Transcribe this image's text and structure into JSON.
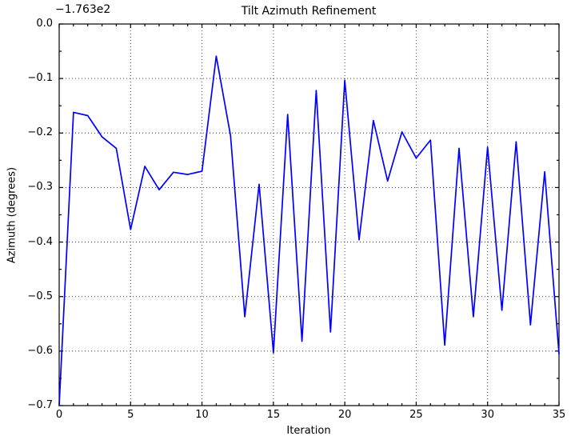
{
  "figure": {
    "background": "#ffffff",
    "spine_color": "#000000",
    "grid_color": "#444444",
    "text_color": "#000000"
  },
  "chart_data": {
    "type": "line",
    "title": "Tilt Azimuth Refinement",
    "xlabel": "Iteration",
    "ylabel": "Azimuth (degrees)",
    "y_offset_label": "−1.763e2",
    "xlim": [
      0,
      35
    ],
    "ylim": [
      -0.7,
      0.0
    ],
    "xticks": [
      0,
      5,
      10,
      15,
      20,
      25,
      30,
      35
    ],
    "xtick_labels": [
      "0",
      "5",
      "10",
      "15",
      "20",
      "25",
      "30",
      "35"
    ],
    "yticks": [
      0.0,
      -0.1,
      -0.2,
      -0.3,
      -0.4,
      -0.5,
      -0.6,
      -0.7
    ],
    "ytick_labels": [
      "0.0",
      "−0.1",
      "−0.2",
      "−0.3",
      "−0.4",
      "−0.5",
      "−0.6",
      "−0.7"
    ],
    "minor_x_step": 1,
    "minor_y_step": 0.05,
    "grid": "dotted",
    "legend_position": "none",
    "series": [
      {
        "name": "azimuth",
        "color": "#0000ff",
        "x": [
          0,
          1,
          2,
          3,
          4,
          5,
          6,
          7,
          8,
          9,
          10,
          11,
          12,
          13,
          14,
          15,
          16,
          17,
          18,
          19,
          20,
          21,
          22,
          23,
          24,
          25,
          26,
          27,
          28,
          29,
          30,
          31,
          32,
          33,
          34,
          35
        ],
        "y": [
          -0.7,
          -0.162,
          -0.168,
          -0.207,
          -0.228,
          -0.377,
          -0.261,
          -0.304,
          -0.272,
          -0.276,
          -0.27,
          -0.059,
          -0.205,
          -0.537,
          -0.294,
          -0.603,
          -0.166,
          -0.582,
          -0.122,
          -0.565,
          -0.103,
          -0.396,
          -0.177,
          -0.288,
          -0.198,
          -0.246,
          -0.213,
          -0.589,
          -0.228,
          -0.537,
          -0.226,
          -0.525,
          -0.216,
          -0.552,
          -0.271,
          -0.605
        ]
      }
    ]
  }
}
